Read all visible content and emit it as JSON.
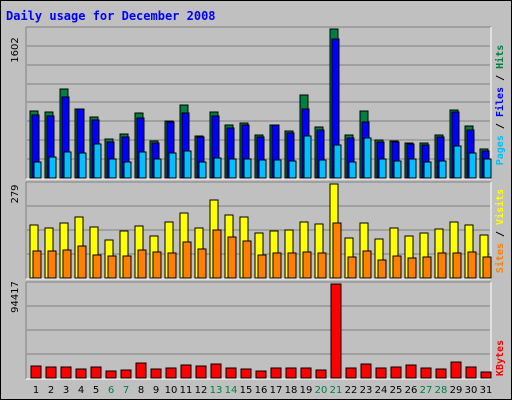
{
  "title": "Daily usage for December 2008",
  "colors": {
    "hits": "#008040",
    "files": "#0000ff",
    "pages": "#00c0ff",
    "visits": "#ffff00",
    "sites": "#ff8000",
    "kbytes": "#ff0000",
    "weekend": "#008040",
    "weekday": "#000080",
    "plot_bg": "#c0c0c0"
  },
  "chart_data": [
    {
      "type": "bar",
      "panel": "hits-files-pages",
      "max_label": "1602",
      "categories": [
        "1",
        "2",
        "3",
        "4",
        "5",
        "6",
        "7",
        "8",
        "9",
        "10",
        "11",
        "12",
        "13",
        "14",
        "15",
        "16",
        "17",
        "18",
        "19",
        "20",
        "21",
        "22",
        "23",
        "24",
        "25",
        "26",
        "27",
        "28",
        "29",
        "30",
        "31"
      ],
      "series": [
        {
          "name": "Hits",
          "values": [
            720,
            705,
            960,
            745,
            660,
            420,
            470,
            700,
            400,
            610,
            780,
            450,
            710,
            575,
            590,
            460,
            570,
            500,
            890,
            550,
            1602,
            460,
            720,
            410,
            400,
            380,
            375,
            460,
            730,
            560,
            310
          ]
        },
        {
          "name": "Files",
          "values": [
            675,
            665,
            870,
            745,
            620,
            390,
            440,
            640,
            380,
            600,
            700,
            440,
            670,
            535,
            565,
            440,
            570,
            480,
            740,
            520,
            1490,
            435,
            600,
            385,
            390,
            365,
            355,
            440,
            710,
            520,
            290
          ]
        },
        {
          "name": "Pages",
          "values": [
            170,
            230,
            275,
            270,
            370,
            200,
            170,
            280,
            200,
            270,
            285,
            175,
            220,
            200,
            200,
            190,
            190,
            180,
            450,
            190,
            350,
            170,
            430,
            200,
            180,
            200,
            170,
            180,
            340,
            270,
            200
          ]
        }
      ],
      "ylim": [
        0,
        1602
      ]
    },
    {
      "type": "bar",
      "panel": "visits-sites",
      "max_label": "279",
      "categories": [
        "1",
        "2",
        "3",
        "4",
        "5",
        "6",
        "7",
        "8",
        "9",
        "10",
        "11",
        "12",
        "13",
        "14",
        "15",
        "16",
        "17",
        "18",
        "19",
        "20",
        "21",
        "22",
        "23",
        "24",
        "25",
        "26",
        "27",
        "28",
        "29",
        "30",
        "31"
      ],
      "series": [
        {
          "name": "Visits",
          "values": [
            156,
            147,
            164,
            181,
            151,
            113,
            139,
            153,
            125,
            165,
            192,
            149,
            232,
            186,
            182,
            134,
            140,
            141,
            167,
            161,
            279,
            118,
            164,
            117,
            147,
            124,
            134,
            145,
            165,
            158,
            127
          ]
        },
        {
          "name": "Sites",
          "values": [
            79,
            80,
            82,
            95,
            67,
            64,
            65,
            84,
            77,
            74,
            108,
            87,
            143,
            123,
            109,
            68,
            75,
            73,
            77,
            75,
            163,
            63,
            79,
            53,
            65,
            59,
            62,
            75,
            74,
            76,
            62
          ]
        }
      ],
      "ylim": [
        0,
        279
      ]
    },
    {
      "type": "bar",
      "panel": "kbytes",
      "max_label": "94417",
      "categories": [
        "1",
        "2",
        "3",
        "4",
        "5",
        "6",
        "7",
        "8",
        "9",
        "10",
        "11",
        "12",
        "13",
        "14",
        "15",
        "16",
        "17",
        "18",
        "19",
        "20",
        "21",
        "22",
        "23",
        "24",
        "25",
        "26",
        "27",
        "28",
        "29",
        "30",
        "31"
      ],
      "series": [
        {
          "name": "KBytes",
          "values": [
            11800,
            10700,
            11200,
            9000,
            10800,
            6800,
            8400,
            14600,
            9000,
            9600,
            13300,
            12000,
            14000,
            10400,
            9000,
            7000,
            10000,
            10000,
            10400,
            8000,
            94417,
            10300,
            13600,
            9600,
            10800,
            13200,
            9600,
            9000,
            16100,
            11200,
            6000
          ]
        }
      ],
      "ylim": [
        0,
        94417
      ]
    }
  ],
  "day_labels": [
    "1",
    "2",
    "3",
    "4",
    "5",
    "6",
    "7",
    "8",
    "9",
    "10",
    "11",
    "12",
    "13",
    "14",
    "15",
    "16",
    "17",
    "18",
    "19",
    "20",
    "21",
    "22",
    "23",
    "24",
    "25",
    "26",
    "27",
    "28",
    "29",
    "30",
    "31"
  ],
  "weekend_days": [
    6,
    7,
    13,
    14,
    20,
    21,
    27,
    28
  ],
  "legend": {
    "panel1": [
      "Pages",
      "/",
      "Files",
      "/",
      "Hits"
    ],
    "panel2": [
      "Sites",
      "/",
      "Visits"
    ],
    "panel3": [
      "KBytes"
    ]
  }
}
